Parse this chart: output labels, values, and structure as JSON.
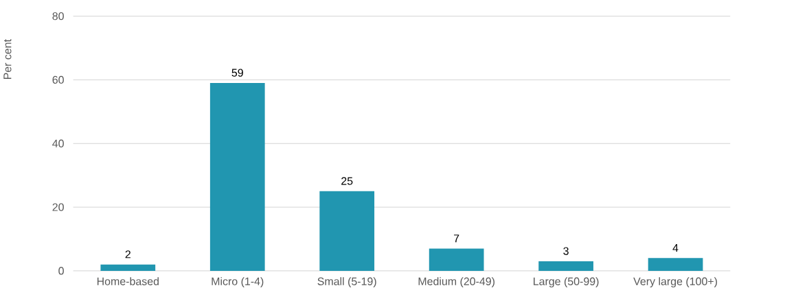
{
  "chart_data": {
    "type": "bar",
    "ylabel": "Per cent",
    "categories": [
      "Home-based",
      "Micro (1-4)",
      "Small (5-19)",
      "Medium (20-49)",
      "Large (50-99)",
      "Very large (100+)"
    ],
    "values": [
      2,
      59,
      25,
      7,
      3,
      4
    ],
    "color": "#2196b0",
    "ylim": [
      0,
      80
    ],
    "yticks": [
      0,
      20,
      40,
      60,
      80
    ],
    "grid": "y",
    "data_labels": true
  }
}
